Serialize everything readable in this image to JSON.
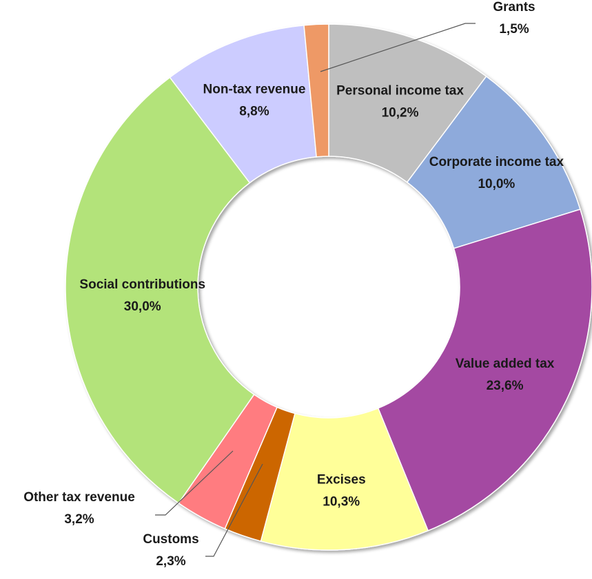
{
  "chart_data": {
    "type": "pie",
    "variant": "donut",
    "categories": [
      "Personal income tax",
      "Corporate income tax",
      "Value added tax",
      "Excises",
      "Customs",
      "Other tax revenue",
      "Social contributions",
      "Non-tax revenue",
      "Grants"
    ],
    "values": [
      10.2,
      10.0,
      23.6,
      10.3,
      2.3,
      3.2,
      30.0,
      8.8,
      1.5
    ],
    "value_labels": [
      "10,2%",
      "10,0%",
      "23,6%",
      "10,3%",
      "2,3%",
      "3,2%",
      "30,0%",
      "8,8%",
      "1,5%"
    ],
    "colors": [
      "#bfbfbf",
      "#8eaadb",
      "#a44aa2",
      "#ffff99",
      "#cc6600",
      "#ff7c80",
      "#b3e37a",
      "#ccccff",
      "#ee9966"
    ],
    "legend": "none",
    "data_labels": "category and percentage",
    "start_angle": "12 o'clock, clockwise"
  }
}
